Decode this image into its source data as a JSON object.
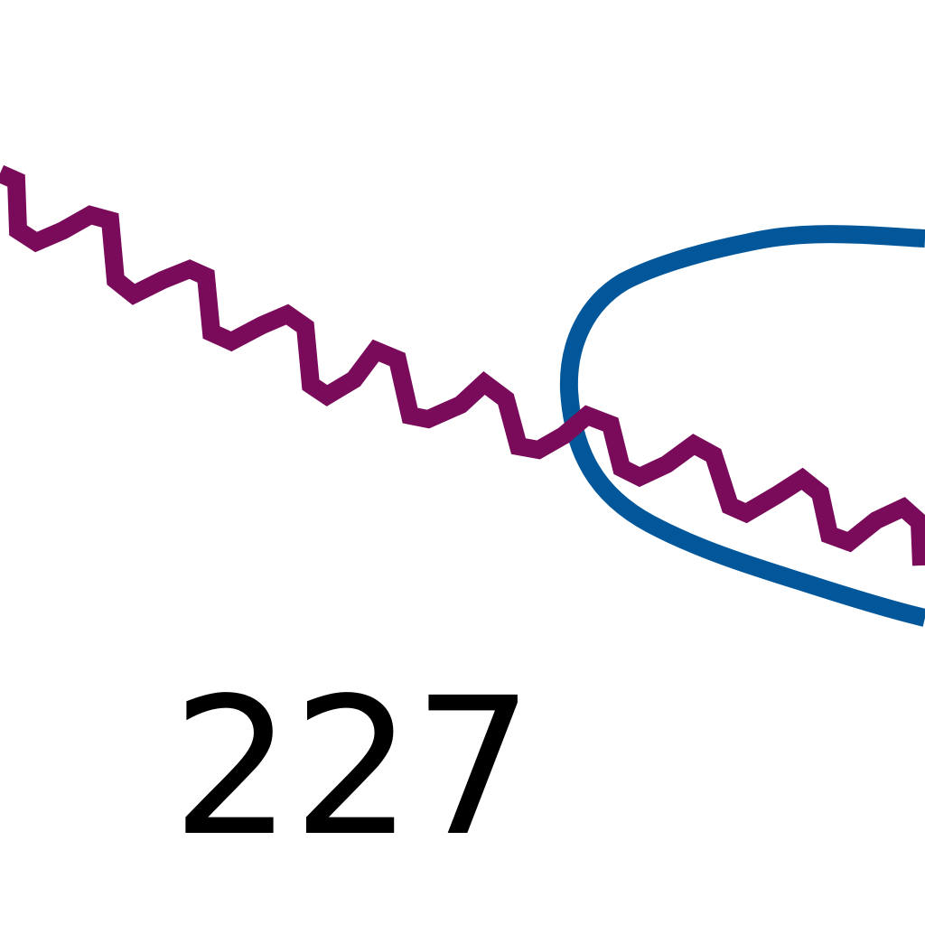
{
  "label": {
    "text": "227"
  },
  "colors": {
    "background": "#ffffff",
    "wavy_line": "#7a0a5a",
    "curve_line": "#02579b",
    "label_text": "#000000"
  }
}
